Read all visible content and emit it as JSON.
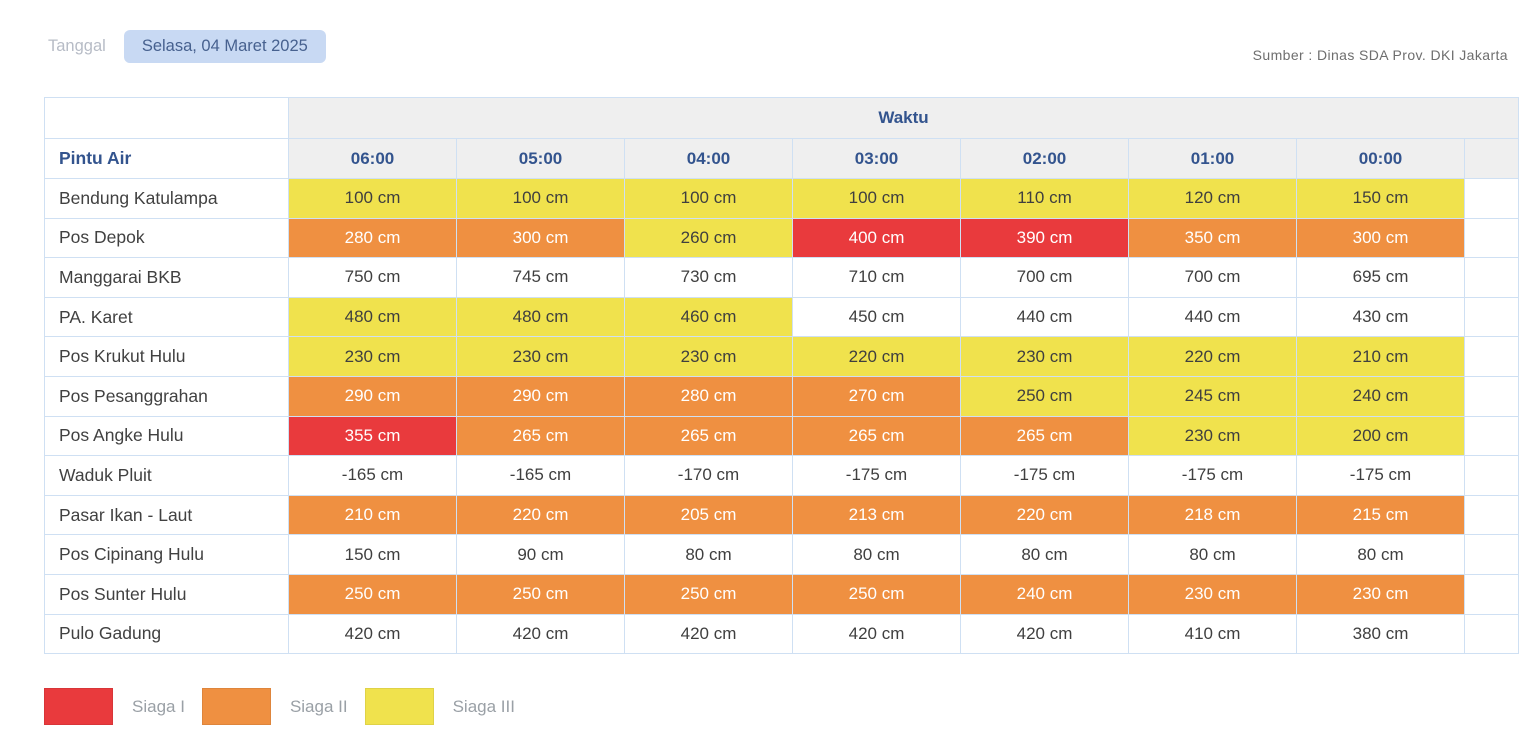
{
  "header": {
    "date_label": "Tanggal",
    "date_value": "Selasa, 04 Maret 2025",
    "source": "Sumber : Dinas SDA Prov. DKI Jakarta"
  },
  "table": {
    "corner_label": "Pintu Air",
    "group_header": "Waktu",
    "time_columns": [
      "06:00",
      "05:00",
      "04:00",
      "03:00",
      "02:00",
      "01:00",
      "00:00"
    ],
    "unit": "cm",
    "rows": [
      {
        "name": "Bendung Katulampa",
        "values": [
          "100 cm",
          "100 cm",
          "100 cm",
          "100 cm",
          "110 cm",
          "120 cm",
          "150 cm"
        ],
        "statuses": [
          "s3",
          "s3",
          "s3",
          "s3",
          "s3",
          "s3",
          "s3"
        ]
      },
      {
        "name": "Pos Depok",
        "values": [
          "280 cm",
          "300 cm",
          "260 cm",
          "400 cm",
          "390 cm",
          "350 cm",
          "300 cm"
        ],
        "statuses": [
          "s2",
          "s2",
          "s3",
          "s1",
          "s1",
          "s2",
          "s2"
        ]
      },
      {
        "name": "Manggarai BKB",
        "values": [
          "750 cm",
          "745 cm",
          "730 cm",
          "710 cm",
          "700 cm",
          "700 cm",
          "695 cm"
        ],
        "statuses": [
          "n",
          "n",
          "n",
          "n",
          "n",
          "n",
          "n"
        ]
      },
      {
        "name": "PA. Karet",
        "values": [
          "480 cm",
          "480 cm",
          "460 cm",
          "450 cm",
          "440 cm",
          "440 cm",
          "430 cm"
        ],
        "statuses": [
          "s3",
          "s3",
          "s3",
          "n",
          "n",
          "n",
          "n"
        ]
      },
      {
        "name": "Pos Krukut Hulu",
        "values": [
          "230 cm",
          "230 cm",
          "230 cm",
          "220 cm",
          "230 cm",
          "220 cm",
          "210 cm"
        ],
        "statuses": [
          "s3",
          "s3",
          "s3",
          "s3",
          "s3",
          "s3",
          "s3"
        ]
      },
      {
        "name": "Pos Pesanggrahan",
        "values": [
          "290 cm",
          "290 cm",
          "280 cm",
          "270 cm",
          "250 cm",
          "245 cm",
          "240 cm"
        ],
        "statuses": [
          "s2",
          "s2",
          "s2",
          "s2",
          "s3",
          "s3",
          "s3"
        ]
      },
      {
        "name": "Pos Angke Hulu",
        "values": [
          "355 cm",
          "265 cm",
          "265 cm",
          "265 cm",
          "265 cm",
          "230 cm",
          "200 cm"
        ],
        "statuses": [
          "s1",
          "s2",
          "s2",
          "s2",
          "s2",
          "s3",
          "s3"
        ]
      },
      {
        "name": "Waduk Pluit",
        "values": [
          "-165 cm",
          "-165 cm",
          "-170 cm",
          "-175 cm",
          "-175 cm",
          "-175 cm",
          "-175 cm"
        ],
        "statuses": [
          "n",
          "n",
          "n",
          "n",
          "n",
          "n",
          "n"
        ]
      },
      {
        "name": "Pasar Ikan - Laut",
        "values": [
          "210 cm",
          "220 cm",
          "205 cm",
          "213 cm",
          "220 cm",
          "218 cm",
          "215 cm"
        ],
        "statuses": [
          "s2",
          "s2",
          "s2",
          "s2",
          "s2",
          "s2",
          "s2"
        ]
      },
      {
        "name": "Pos Cipinang Hulu",
        "values": [
          "150 cm",
          "90 cm",
          "80 cm",
          "80 cm",
          "80 cm",
          "80 cm",
          "80 cm"
        ],
        "statuses": [
          "n",
          "n",
          "n",
          "n",
          "n",
          "n",
          "n"
        ]
      },
      {
        "name": "Pos Sunter Hulu",
        "values": [
          "250 cm",
          "250 cm",
          "250 cm",
          "250 cm",
          "240 cm",
          "230 cm",
          "230 cm"
        ],
        "statuses": [
          "s2",
          "s2",
          "s2",
          "s2",
          "s2",
          "s2",
          "s2"
        ]
      },
      {
        "name": "Pulo Gadung",
        "values": [
          "420 cm",
          "420 cm",
          "420 cm",
          "420 cm",
          "420 cm",
          "410 cm",
          "380 cm"
        ],
        "statuses": [
          "n",
          "n",
          "n",
          "n",
          "n",
          "n",
          "n"
        ]
      }
    ]
  },
  "legend": [
    {
      "label": "Siaga I",
      "status": "s1",
      "color": "#e93a3d"
    },
    {
      "label": "Siaga II",
      "status": "s2",
      "color": "#ef9041"
    },
    {
      "label": "Siaga III",
      "status": "s3",
      "color": "#f0e24d"
    }
  ],
  "colors": {
    "siaga_i": "#e93a3d",
    "siaga_ii": "#ef9041",
    "siaga_iii": "#f0e24d",
    "normal": "#ffffff",
    "header_blue": "#33548e",
    "chip_bg": "#c8d9f3",
    "chip_text": "#47618f"
  }
}
